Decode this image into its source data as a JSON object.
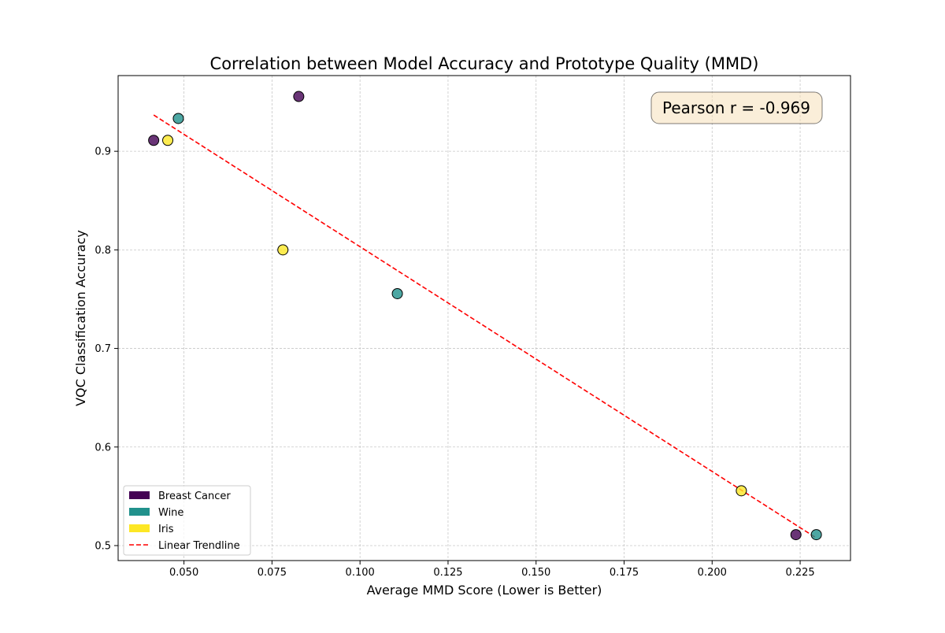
{
  "chart_data": {
    "type": "scatter",
    "title": "Correlation between Model Accuracy and Prototype Quality (MMD)",
    "xlabel": "Average MMD Score (Lower is Better)",
    "ylabel": "VQC Classification Accuracy",
    "xlim": [
      0.0313,
      0.2393
    ],
    "ylim": [
      0.4848,
      0.9768
    ],
    "xticks": [
      0.05,
      0.075,
      0.1,
      0.125,
      0.15,
      0.175,
      0.2,
      0.225
    ],
    "xtick_labels": [
      "0.050",
      "0.075",
      "0.100",
      "0.125",
      "0.150",
      "0.175",
      "0.200",
      "0.225"
    ],
    "yticks": [
      0.5,
      0.6,
      0.7,
      0.8,
      0.9
    ],
    "ytick_labels": [
      "0.5",
      "0.6",
      "0.7",
      "0.8",
      "0.9"
    ],
    "grid": true,
    "legend_position": "lower-left",
    "series": [
      {
        "name": "Breast Cancer",
        "color": "#440154",
        "points": [
          {
            "x": 0.0414,
            "y": 0.9111
          },
          {
            "x": 0.0826,
            "y": 0.9556
          },
          {
            "x": 0.2238,
            "y": 0.5111
          }
        ]
      },
      {
        "name": "Wine",
        "color": "#21918c",
        "points": [
          {
            "x": 0.0484,
            "y": 0.9333
          },
          {
            "x": 0.1106,
            "y": 0.7556
          },
          {
            "x": 0.2296,
            "y": 0.5111
          }
        ]
      },
      {
        "name": "Iris",
        "color": "#fde725",
        "points": [
          {
            "x": 0.0454,
            "y": 0.9111
          },
          {
            "x": 0.0781,
            "y": 0.8
          },
          {
            "x": 0.2083,
            "y": 0.5556
          }
        ]
      }
    ],
    "trendline": {
      "name": "Linear Trendline",
      "color": "#ff0000",
      "style": "dashed",
      "x": [
        0.0414,
        0.2296
      ],
      "y": [
        0.9368,
        0.5077
      ]
    },
    "annotation": "Pearson r = -0.969"
  }
}
